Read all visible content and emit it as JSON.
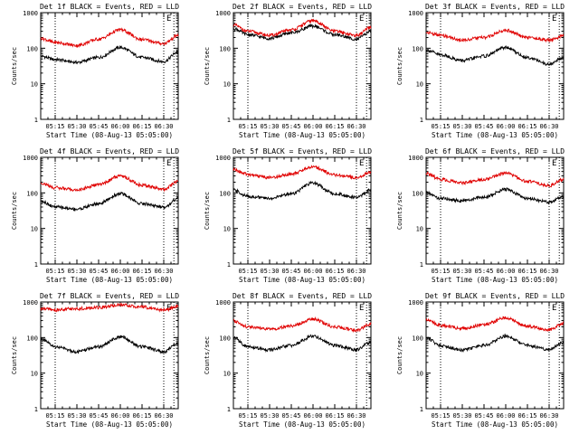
{
  "colors": {
    "events": "#000000",
    "lld": "#e00000",
    "background": "#ffffff",
    "axes": "#000000"
  },
  "chart_data": [
    {
      "type": "line",
      "title": "Det 1f BLACK = Events, RED = LLD",
      "xlabel": "Start Time (08-Aug-13 05:05:00)",
      "ylabel": "Counts/sec",
      "yscale": "log",
      "ylim": [
        1,
        1000
      ],
      "yticks": [
        "1",
        "10",
        "100",
        "1000"
      ],
      "xticks": [
        "05:15",
        "05:30",
        "05:45",
        "06:00",
        "06:15",
        "06:30"
      ],
      "xlim": [
        "05:05",
        "06:40"
      ],
      "markers": [
        {
          "label": "",
          "x": "05:15"
        },
        {
          "label": "E",
          "x": "06:30"
        },
        {
          "label": "",
          "x": "06:37"
        }
      ],
      "series": [
        {
          "name": "BLACK = Events",
          "color": "#000000",
          "x": [
            "05:05",
            "05:15",
            "05:30",
            "05:45",
            "06:00",
            "06:15",
            "06:30",
            "06:40"
          ],
          "values": [
            60,
            48,
            40,
            55,
            105,
            55,
            42,
            80
          ]
        },
        {
          "name": "RED = LLD",
          "color": "#e00000",
          "x": [
            "05:05",
            "05:15",
            "05:30",
            "05:45",
            "06:00",
            "06:15",
            "06:30",
            "06:40"
          ],
          "values": [
            190,
            145,
            120,
            180,
            330,
            175,
            135,
            230
          ]
        }
      ]
    },
    {
      "type": "line",
      "title": "Det 2f BLACK = Events, RED = LLD",
      "xlabel": "Start Time (08-Aug-13 05:05:00)",
      "ylabel": "Counts/sec",
      "yscale": "log",
      "ylim": [
        1,
        1000
      ],
      "yticks": [
        "1",
        "10",
        "100",
        "1000"
      ],
      "xticks": [
        "05:15",
        "05:30",
        "05:45",
        "06:00",
        "06:15",
        "06:30"
      ],
      "xlim": [
        "05:05",
        "06:40"
      ],
      "markers": [
        {
          "label": "",
          "x": "05:15"
        },
        {
          "label": "E",
          "x": "06:30"
        },
        {
          "label": "",
          "x": "06:37"
        }
      ],
      "series": [
        {
          "name": "BLACK = Events",
          "color": "#000000",
          "x": [
            "05:05",
            "05:15",
            "05:30",
            "05:45",
            "06:00",
            "06:15",
            "06:30",
            "06:40"
          ],
          "values": [
            360,
            240,
            190,
            270,
            420,
            240,
            180,
            300
          ]
        },
        {
          "name": "RED = LLD",
          "color": "#e00000",
          "x": [
            "05:05",
            "05:15",
            "05:30",
            "05:45",
            "06:00",
            "06:15",
            "06:30",
            "06:40"
          ],
          "values": [
            450,
            300,
            230,
            330,
            600,
            300,
            230,
            380
          ]
        }
      ]
    },
    {
      "type": "line",
      "title": "Det 3f BLACK = Events, RED = LLD",
      "xlabel": "Start Time (08-Aug-13 05:05:00)",
      "ylabel": "Counts/sec",
      "yscale": "log",
      "ylim": [
        1,
        1000
      ],
      "yticks": [
        "1",
        "10",
        "100",
        "1000"
      ],
      "xticks": [
        "05:15",
        "05:30",
        "05:45",
        "06:00",
        "06:15",
        "06:30"
      ],
      "xlim": [
        "05:05",
        "06:40"
      ],
      "markers": [
        {
          "label": "",
          "x": "05:15"
        },
        {
          "label": "E",
          "x": "06:30"
        },
        {
          "label": "",
          "x": "06:37"
        }
      ],
      "series": [
        {
          "name": "BLACK = Events",
          "color": "#000000",
          "x": [
            "05:05",
            "05:15",
            "05:30",
            "05:45",
            "06:00",
            "06:15",
            "06:30",
            "06:40"
          ],
          "values": [
            90,
            65,
            45,
            60,
            105,
            55,
            35,
            55
          ]
        },
        {
          "name": "RED = LLD",
          "color": "#e00000",
          "x": [
            "05:05",
            "05:15",
            "05:30",
            "05:45",
            "06:00",
            "06:15",
            "06:30",
            "06:40"
          ],
          "values": [
            280,
            230,
            170,
            200,
            320,
            200,
            170,
            220
          ]
        }
      ]
    },
    {
      "type": "line",
      "title": "Det 4f BLACK = Events, RED = LLD",
      "xlabel": "Start Time (08-Aug-13 05:05:00)",
      "ylabel": "Counts/sec",
      "yscale": "log",
      "ylim": [
        1,
        1000
      ],
      "yticks": [
        "1",
        "10",
        "100",
        "1000"
      ],
      "xticks": [
        "05:15",
        "05:30",
        "05:45",
        "06:00",
        "06:15",
        "06:30"
      ],
      "xlim": [
        "05:05",
        "06:40"
      ],
      "markers": [
        {
          "label": "",
          "x": "05:15"
        },
        {
          "label": "E",
          "x": "06:30"
        },
        {
          "label": "",
          "x": "06:37"
        }
      ],
      "series": [
        {
          "name": "BLACK = Events",
          "color": "#000000",
          "x": [
            "05:05",
            "05:15",
            "05:30",
            "05:45",
            "06:00",
            "06:15",
            "06:30",
            "06:40"
          ],
          "values": [
            60,
            40,
            35,
            50,
            95,
            50,
            40,
            70
          ]
        },
        {
          "name": "RED = LLD",
          "color": "#e00000",
          "x": [
            "05:05",
            "05:15",
            "05:30",
            "05:45",
            "06:00",
            "06:15",
            "06:30",
            "06:40"
          ],
          "values": [
            190,
            140,
            120,
            170,
            300,
            165,
            125,
            210
          ]
        }
      ]
    },
    {
      "type": "line",
      "title": "Det 5f BLACK = Events, RED = LLD",
      "xlabel": "Start Time (08-Aug-13 05:05:00)",
      "ylabel": "Counts/sec",
      "yscale": "log",
      "ylim": [
        1,
        1000
      ],
      "yticks": [
        "1",
        "10",
        "100",
        "1000"
      ],
      "xticks": [
        "05:15",
        "05:30",
        "05:45",
        "06:00",
        "06:15",
        "06:30"
      ],
      "xlim": [
        "05:05",
        "06:40"
      ],
      "markers": [
        {
          "label": "",
          "x": "05:15"
        },
        {
          "label": "E",
          "x": "06:30"
        },
        {
          "label": "",
          "x": "06:37"
        }
      ],
      "series": [
        {
          "name": "BLACK = Events",
          "color": "#000000",
          "x": [
            "05:05",
            "05:15",
            "05:30",
            "05:45",
            "06:00",
            "06:15",
            "06:30",
            "06:40"
          ],
          "values": [
            120,
            80,
            70,
            95,
            190,
            95,
            75,
            120
          ]
        },
        {
          "name": "RED = LLD",
          "color": "#e00000",
          "x": [
            "05:05",
            "05:15",
            "05:30",
            "05:45",
            "06:00",
            "06:15",
            "06:30",
            "06:40"
          ],
          "values": [
            450,
            330,
            270,
            340,
            540,
            320,
            270,
            380
          ]
        }
      ]
    },
    {
      "type": "line",
      "title": "Det 6f BLACK = Events, RED = LLD",
      "xlabel": "Start Time (08-Aug-13 05:05:00)",
      "ylabel": "Counts/sec",
      "yscale": "log",
      "ylim": [
        1,
        1000
      ],
      "yticks": [
        "1",
        "10",
        "100",
        "1000"
      ],
      "xticks": [
        "05:15",
        "05:30",
        "05:45",
        "06:00",
        "06:15",
        "06:30"
      ],
      "xlim": [
        "05:05",
        "06:40"
      ],
      "markers": [
        {
          "label": "",
          "x": "05:15"
        },
        {
          "label": "E",
          "x": "06:30"
        },
        {
          "label": "",
          "x": "06:37"
        }
      ],
      "series": [
        {
          "name": "BLACK = Events",
          "color": "#000000",
          "x": [
            "05:05",
            "05:15",
            "05:30",
            "05:45",
            "06:00",
            "06:15",
            "06:30",
            "06:40"
          ],
          "values": [
            100,
            70,
            60,
            75,
            125,
            70,
            55,
            80
          ]
        },
        {
          "name": "RED = LLD",
          "color": "#e00000",
          "x": [
            "05:05",
            "05:15",
            "05:30",
            "05:45",
            "06:00",
            "06:15",
            "06:30",
            "06:40"
          ],
          "values": [
            350,
            240,
            190,
            240,
            360,
            210,
            160,
            240
          ]
        }
      ]
    },
    {
      "type": "line",
      "title": "Det 7f BLACK = Events, RED = LLD",
      "xlabel": "Start Time (08-Aug-13 05:05:00)",
      "ylabel": "Counts/sec",
      "yscale": "log",
      "ylim": [
        1,
        1000
      ],
      "yticks": [
        "1",
        "10",
        "100",
        "1000"
      ],
      "xticks": [
        "05:15",
        "05:30",
        "05:45",
        "06:00",
        "06:15",
        "06:30"
      ],
      "xlim": [
        "05:05",
        "06:40"
      ],
      "markers": [
        {
          "label": "",
          "x": "05:15"
        },
        {
          "label": "E",
          "x": "06:30"
        },
        {
          "label": "",
          "x": "06:37"
        }
      ],
      "series": [
        {
          "name": "BLACK = Events",
          "color": "#000000",
          "x": [
            "05:05",
            "05:15",
            "05:30",
            "05:45",
            "06:00",
            "06:15",
            "06:30",
            "06:40"
          ],
          "values": [
            90,
            55,
            40,
            55,
            105,
            55,
            40,
            70
          ]
        },
        {
          "name": "RED = LLD",
          "color": "#e00000",
          "x": [
            "05:05",
            "05:15",
            "05:30",
            "05:45",
            "06:00",
            "06:15",
            "06:30",
            "06:40"
          ],
          "values": [
            650,
            600,
            650,
            700,
            820,
            720,
            600,
            750
          ]
        }
      ]
    },
    {
      "type": "line",
      "title": "Det 8f BLACK = Events, RED = LLD",
      "xlabel": "Start Time (08-Aug-13 05:05:00)",
      "ylabel": "Counts/sec",
      "yscale": "log",
      "ylim": [
        1,
        1000
      ],
      "yticks": [
        "1",
        "10",
        "100",
        "1000"
      ],
      "xticks": [
        "05:15",
        "05:30",
        "05:45",
        "06:00",
        "06:15",
        "06:30"
      ],
      "xlim": [
        "05:05",
        "06:40"
      ],
      "markers": [
        {
          "label": "",
          "x": "05:15"
        },
        {
          "label": "E",
          "x": "06:30"
        },
        {
          "label": "",
          "x": "06:37"
        }
      ],
      "series": [
        {
          "name": "BLACK = Events",
          "color": "#000000",
          "x": [
            "05:05",
            "05:15",
            "05:30",
            "05:45",
            "06:00",
            "06:15",
            "06:30",
            "06:40"
          ],
          "values": [
            100,
            55,
            45,
            60,
            110,
            60,
            45,
            75
          ]
        },
        {
          "name": "RED = LLD",
          "color": "#e00000",
          "x": [
            "05:05",
            "05:15",
            "05:30",
            "05:45",
            "06:00",
            "06:15",
            "06:30",
            "06:40"
          ],
          "values": [
            300,
            200,
            170,
            210,
            330,
            200,
            160,
            240
          ]
        }
      ]
    },
    {
      "type": "line",
      "title": "Det 9f BLACK = Events, RED = LLD",
      "xlabel": "Start Time (08-Aug-13 05:05:00)",
      "ylabel": "Counts/sec",
      "yscale": "log",
      "ylim": [
        1,
        1000
      ],
      "yticks": [
        "1",
        "10",
        "100",
        "1000"
      ],
      "xticks": [
        "05:15",
        "05:30",
        "05:45",
        "06:00",
        "06:15",
        "06:30"
      ],
      "xlim": [
        "05:05",
        "06:40"
      ],
      "markers": [
        {
          "label": "",
          "x": "05:15"
        },
        {
          "label": "E",
          "x": "06:30"
        },
        {
          "label": "",
          "x": "06:37"
        }
      ],
      "series": [
        {
          "name": "BLACK = Events",
          "color": "#000000",
          "x": [
            "05:05",
            "05:15",
            "05:30",
            "05:45",
            "06:00",
            "06:15",
            "06:30",
            "06:40"
          ],
          "values": [
            100,
            60,
            45,
            60,
            110,
            60,
            45,
            75
          ]
        },
        {
          "name": "RED = LLD",
          "color": "#e00000",
          "x": [
            "05:05",
            "05:15",
            "05:30",
            "05:45",
            "06:00",
            "06:15",
            "06:30",
            "06:40"
          ],
          "values": [
            330,
            220,
            180,
            230,
            360,
            210,
            165,
            250
          ]
        }
      ]
    }
  ]
}
